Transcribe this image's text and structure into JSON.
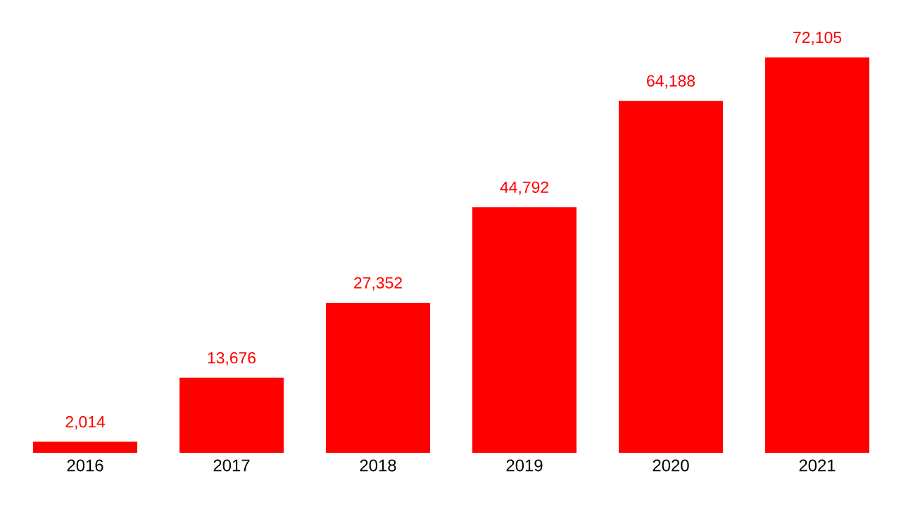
{
  "chart_data": {
    "type": "bar",
    "categories": [
      "2016",
      "2017",
      "2018",
      "2019",
      "2020",
      "2021"
    ],
    "values": [
      2014,
      13676,
      27352,
      44792,
      64188,
      72105
    ],
    "value_labels": [
      "2,014",
      "13,676",
      "27,352",
      "44,792",
      "64,188",
      "72,105"
    ],
    "color": "#ff0000"
  }
}
